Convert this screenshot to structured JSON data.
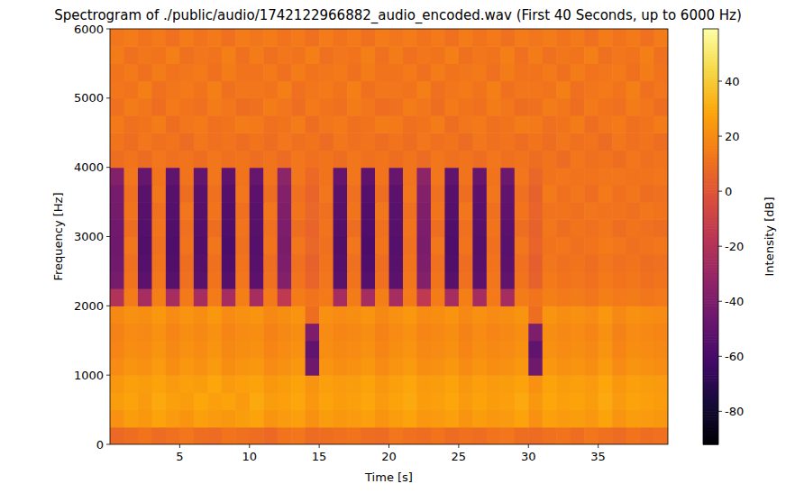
{
  "chart_data": {
    "type": "heatmap",
    "title": "Spectrogram of ./public/audio/1742122966882_audio_encoded.wav (First 40 Seconds, up to 6000 Hz)",
    "x_label": "Time [s]",
    "y_label": "Frequency [Hz]",
    "xlim": [
      0,
      40
    ],
    "ylim": [
      0,
      6000
    ],
    "xticks": [
      5,
      10,
      15,
      20,
      25,
      30,
      35
    ],
    "yticks": [
      0,
      1000,
      2000,
      3000,
      4000,
      5000,
      6000
    ],
    "x_bins": [
      0,
      1,
      2,
      3,
      4,
      5,
      6,
      7,
      8,
      9,
      10,
      11,
      12,
      13,
      14,
      15,
      16,
      17,
      18,
      19,
      20,
      21,
      22,
      23,
      24,
      25,
      26,
      27,
      28,
      29,
      30,
      31,
      32,
      33,
      34,
      35,
      36,
      37,
      38,
      39,
      40
    ],
    "y_bins": [
      0,
      250,
      500,
      750,
      1000,
      1250,
      1500,
      1750,
      2000,
      2250,
      2500,
      2750,
      3000,
      3250,
      3500,
      3750,
      4000,
      4250,
      4500,
      4750,
      5000,
      5250,
      5500,
      5750,
      6000
    ],
    "cells": [
      [
        8,
        10,
        12,
        9,
        11,
        13,
        10,
        9,
        12,
        11,
        10,
        8,
        12,
        13,
        9,
        10,
        11,
        12,
        10,
        9,
        13,
        11,
        10,
        12,
        9,
        11,
        10,
        12,
        13,
        10,
        9,
        11,
        12,
        10,
        13,
        11,
        9,
        12,
        10,
        11
      ],
      [
        22,
        26,
        24,
        28,
        25,
        23,
        27,
        25,
        24,
        26,
        28,
        23,
        25,
        27,
        22,
        26,
        24,
        25,
        27,
        23,
        26,
        28,
        24,
        25,
        27,
        23,
        26,
        24,
        25,
        28,
        22,
        27,
        25,
        26,
        24,
        28,
        23,
        26,
        25,
        24
      ],
      [
        26,
        28,
        25,
        30,
        27,
        26,
        29,
        27,
        28,
        25,
        30,
        26,
        27,
        29,
        24,
        28,
        26,
        27,
        29,
        25,
        28,
        30,
        26,
        27,
        29,
        25,
        28,
        26,
        27,
        30,
        24,
        29,
        27,
        28,
        26,
        30,
        25,
        28,
        27,
        26
      ],
      [
        24,
        27,
        26,
        28,
        25,
        27,
        26,
        29,
        25,
        27,
        28,
        24,
        26,
        28,
        23,
        27,
        25,
        26,
        28,
        24,
        27,
        29,
        25,
        26,
        28,
        24,
        27,
        25,
        26,
        28,
        22,
        28,
        26,
        27,
        25,
        29,
        24,
        27,
        26,
        25
      ],
      [
        20,
        23,
        22,
        25,
        21,
        24,
        22,
        25,
        21,
        23,
        24,
        20,
        22,
        24,
        -45,
        23,
        21,
        22,
        24,
        20,
        23,
        25,
        21,
        22,
        24,
        20,
        23,
        21,
        22,
        24,
        -45,
        24,
        22,
        23,
        21,
        25,
        20,
        23,
        22,
        21
      ],
      [
        18,
        21,
        20,
        23,
        19,
        22,
        20,
        23,
        19,
        21,
        22,
        18,
        20,
        22,
        -50,
        21,
        19,
        20,
        22,
        18,
        21,
        23,
        19,
        20,
        22,
        18,
        21,
        19,
        20,
        22,
        -50,
        22,
        20,
        21,
        19,
        23,
        18,
        21,
        20,
        19
      ],
      [
        17,
        20,
        19,
        22,
        18,
        21,
        19,
        22,
        18,
        20,
        21,
        17,
        19,
        21,
        -40,
        20,
        18,
        19,
        21,
        17,
        20,
        22,
        18,
        19,
        21,
        17,
        20,
        18,
        19,
        21,
        -40,
        21,
        19,
        20,
        18,
        22,
        17,
        20,
        19,
        18
      ],
      [
        19,
        22,
        21,
        24,
        20,
        23,
        21,
        24,
        20,
        22,
        23,
        19,
        21,
        23,
        10,
        22,
        20,
        21,
        23,
        19,
        22,
        24,
        20,
        21,
        23,
        19,
        22,
        20,
        21,
        23,
        10,
        23,
        21,
        22,
        20,
        24,
        19,
        22,
        21,
        20
      ],
      [
        -20,
        15,
        -25,
        16,
        -25,
        14,
        -25,
        15,
        -25,
        16,
        -25,
        14,
        -15,
        15,
        12,
        14,
        -25,
        15,
        -25,
        16,
        -25,
        14,
        -15,
        15,
        -25,
        16,
        -25,
        14,
        -25,
        15,
        12,
        16,
        14,
        15,
        13,
        16,
        14,
        15,
        13,
        14
      ],
      [
        -42,
        12,
        -52,
        13,
        -54,
        11,
        -53,
        12,
        -55,
        13,
        -52,
        11,
        -38,
        12,
        6,
        13,
        -53,
        12,
        -55,
        11,
        -52,
        13,
        -38,
        12,
        -54,
        11,
        -52,
        13,
        -50,
        12,
        5,
        14,
        12,
        13,
        11,
        14,
        12,
        13,
        11,
        12
      ],
      [
        -44,
        11,
        -55,
        12,
        -56,
        10,
        -55,
        11,
        -57,
        12,
        -54,
        10,
        -40,
        11,
        5,
        12,
        -55,
        11,
        -57,
        10,
        -54,
        12,
        -40,
        11,
        -56,
        10,
        -54,
        12,
        -52,
        11,
        4,
        13,
        11,
        12,
        10,
        13,
        11,
        12,
        10,
        11
      ],
      [
        -45,
        13,
        -56,
        11,
        -57,
        12,
        -56,
        13,
        -58,
        11,
        -55,
        12,
        -41,
        13,
        7,
        11,
        -56,
        13,
        -58,
        12,
        -55,
        11,
        -41,
        13,
        -57,
        12,
        -55,
        11,
        -53,
        13,
        6,
        12,
        13,
        11,
        12,
        14,
        13,
        11,
        12,
        13
      ],
      [
        -44,
        10,
        -55,
        12,
        -56,
        11,
        -55,
        10,
        -57,
        12,
        -54,
        11,
        -40,
        10,
        6,
        12,
        -55,
        10,
        -57,
        11,
        -54,
        12,
        -40,
        10,
        -56,
        11,
        -54,
        12,
        -52,
        10,
        5,
        13,
        10,
        12,
        11,
        13,
        10,
        12,
        11,
        10
      ],
      [
        -43,
        12,
        -54,
        11,
        -55,
        13,
        -54,
        12,
        -56,
        11,
        -53,
        13,
        -39,
        12,
        7,
        11,
        -54,
        12,
        -56,
        13,
        -53,
        11,
        -39,
        12,
        -55,
        13,
        -53,
        11,
        -51,
        12,
        6,
        12,
        12,
        11,
        13,
        12,
        12,
        11,
        13,
        12
      ],
      [
        -42,
        11,
        -53,
        13,
        -54,
        10,
        -53,
        11,
        -55,
        13,
        -52,
        10,
        -38,
        11,
        6,
        13,
        -53,
        11,
        -55,
        10,
        -52,
        13,
        -38,
        11,
        -54,
        10,
        -52,
        13,
        -50,
        11,
        5,
        14,
        11,
        13,
        10,
        14,
        11,
        13,
        10,
        11
      ],
      [
        -38,
        13,
        -48,
        12,
        -50,
        12,
        -49,
        13,
        -51,
        12,
        -48,
        12,
        -34,
        13,
        8,
        12,
        -49,
        13,
        -51,
        12,
        -48,
        12,
        -34,
        13,
        -50,
        12,
        -48,
        12,
        -46,
        13,
        7,
        12,
        13,
        12,
        12,
        13,
        13,
        12,
        12,
        13
      ],
      [
        10,
        12,
        9,
        13,
        11,
        12,
        10,
        13,
        11,
        12,
        10,
        12,
        9,
        13,
        11,
        12,
        10,
        13,
        11,
        12,
        10,
        12,
        9,
        13,
        11,
        12,
        10,
        13,
        11,
        12,
        10,
        12,
        9,
        13,
        11,
        12,
        10,
        13,
        11,
        12
      ],
      [
        12,
        10,
        13,
        11,
        12,
        9,
        13,
        11,
        12,
        10,
        12,
        10,
        13,
        11,
        12,
        9,
        13,
        11,
        12,
        10,
        12,
        10,
        13,
        11,
        12,
        9,
        13,
        11,
        12,
        10,
        12,
        10,
        13,
        11,
        12,
        9,
        13,
        11,
        12,
        10
      ],
      [
        14,
        11,
        12,
        15,
        10,
        13,
        14,
        11,
        12,
        15,
        14,
        11,
        12,
        15,
        10,
        13,
        14,
        11,
        12,
        15,
        14,
        11,
        12,
        15,
        10,
        13,
        14,
        11,
        12,
        15,
        14,
        11,
        12,
        15,
        10,
        13,
        14,
        11,
        12,
        15
      ],
      [
        11,
        15,
        13,
        10,
        14,
        12,
        11,
        15,
        13,
        10,
        11,
        15,
        13,
        10,
        14,
        12,
        11,
        15,
        13,
        10,
        11,
        15,
        13,
        10,
        14,
        12,
        11,
        15,
        13,
        10,
        11,
        15,
        13,
        10,
        14,
        12,
        11,
        15,
        13,
        10
      ],
      [
        13,
        12,
        16,
        11,
        13,
        14,
        12,
        16,
        11,
        13,
        13,
        12,
        16,
        11,
        13,
        14,
        12,
        16,
        11,
        13,
        13,
        12,
        16,
        11,
        13,
        14,
        12,
        16,
        11,
        13,
        13,
        12,
        16,
        11,
        13,
        14,
        12,
        16,
        11,
        13
      ],
      [
        12,
        14,
        11,
        15,
        12,
        13,
        14,
        11,
        15,
        12,
        12,
        14,
        11,
        15,
        12,
        13,
        14,
        11,
        15,
        12,
        12,
        14,
        11,
        15,
        12,
        13,
        14,
        11,
        15,
        12,
        12,
        14,
        11,
        15,
        12,
        13,
        14,
        11,
        15,
        12
      ],
      [
        15,
        11,
        13,
        12,
        16,
        11,
        13,
        12,
        16,
        11,
        15,
        11,
        13,
        12,
        16,
        11,
        13,
        12,
        16,
        11,
        15,
        11,
        13,
        12,
        16,
        11,
        13,
        12,
        16,
        11,
        15,
        11,
        13,
        12,
        16,
        11,
        13,
        12,
        16,
        11
      ],
      [
        13,
        15,
        12,
        14,
        11,
        15,
        12,
        14,
        11,
        15,
        13,
        15,
        12,
        14,
        11,
        15,
        12,
        14,
        11,
        15,
        13,
        15,
        12,
        14,
        11,
        15,
        12,
        14,
        11,
        15,
        13,
        15,
        12,
        14,
        11,
        15,
        12,
        14,
        11,
        15
      ]
    ],
    "colorbar": {
      "label": "Intensity [dB]",
      "range": [
        -92,
        59
      ],
      "ticks": [
        -80,
        -60,
        -40,
        -20,
        0,
        20,
        40
      ]
    }
  }
}
